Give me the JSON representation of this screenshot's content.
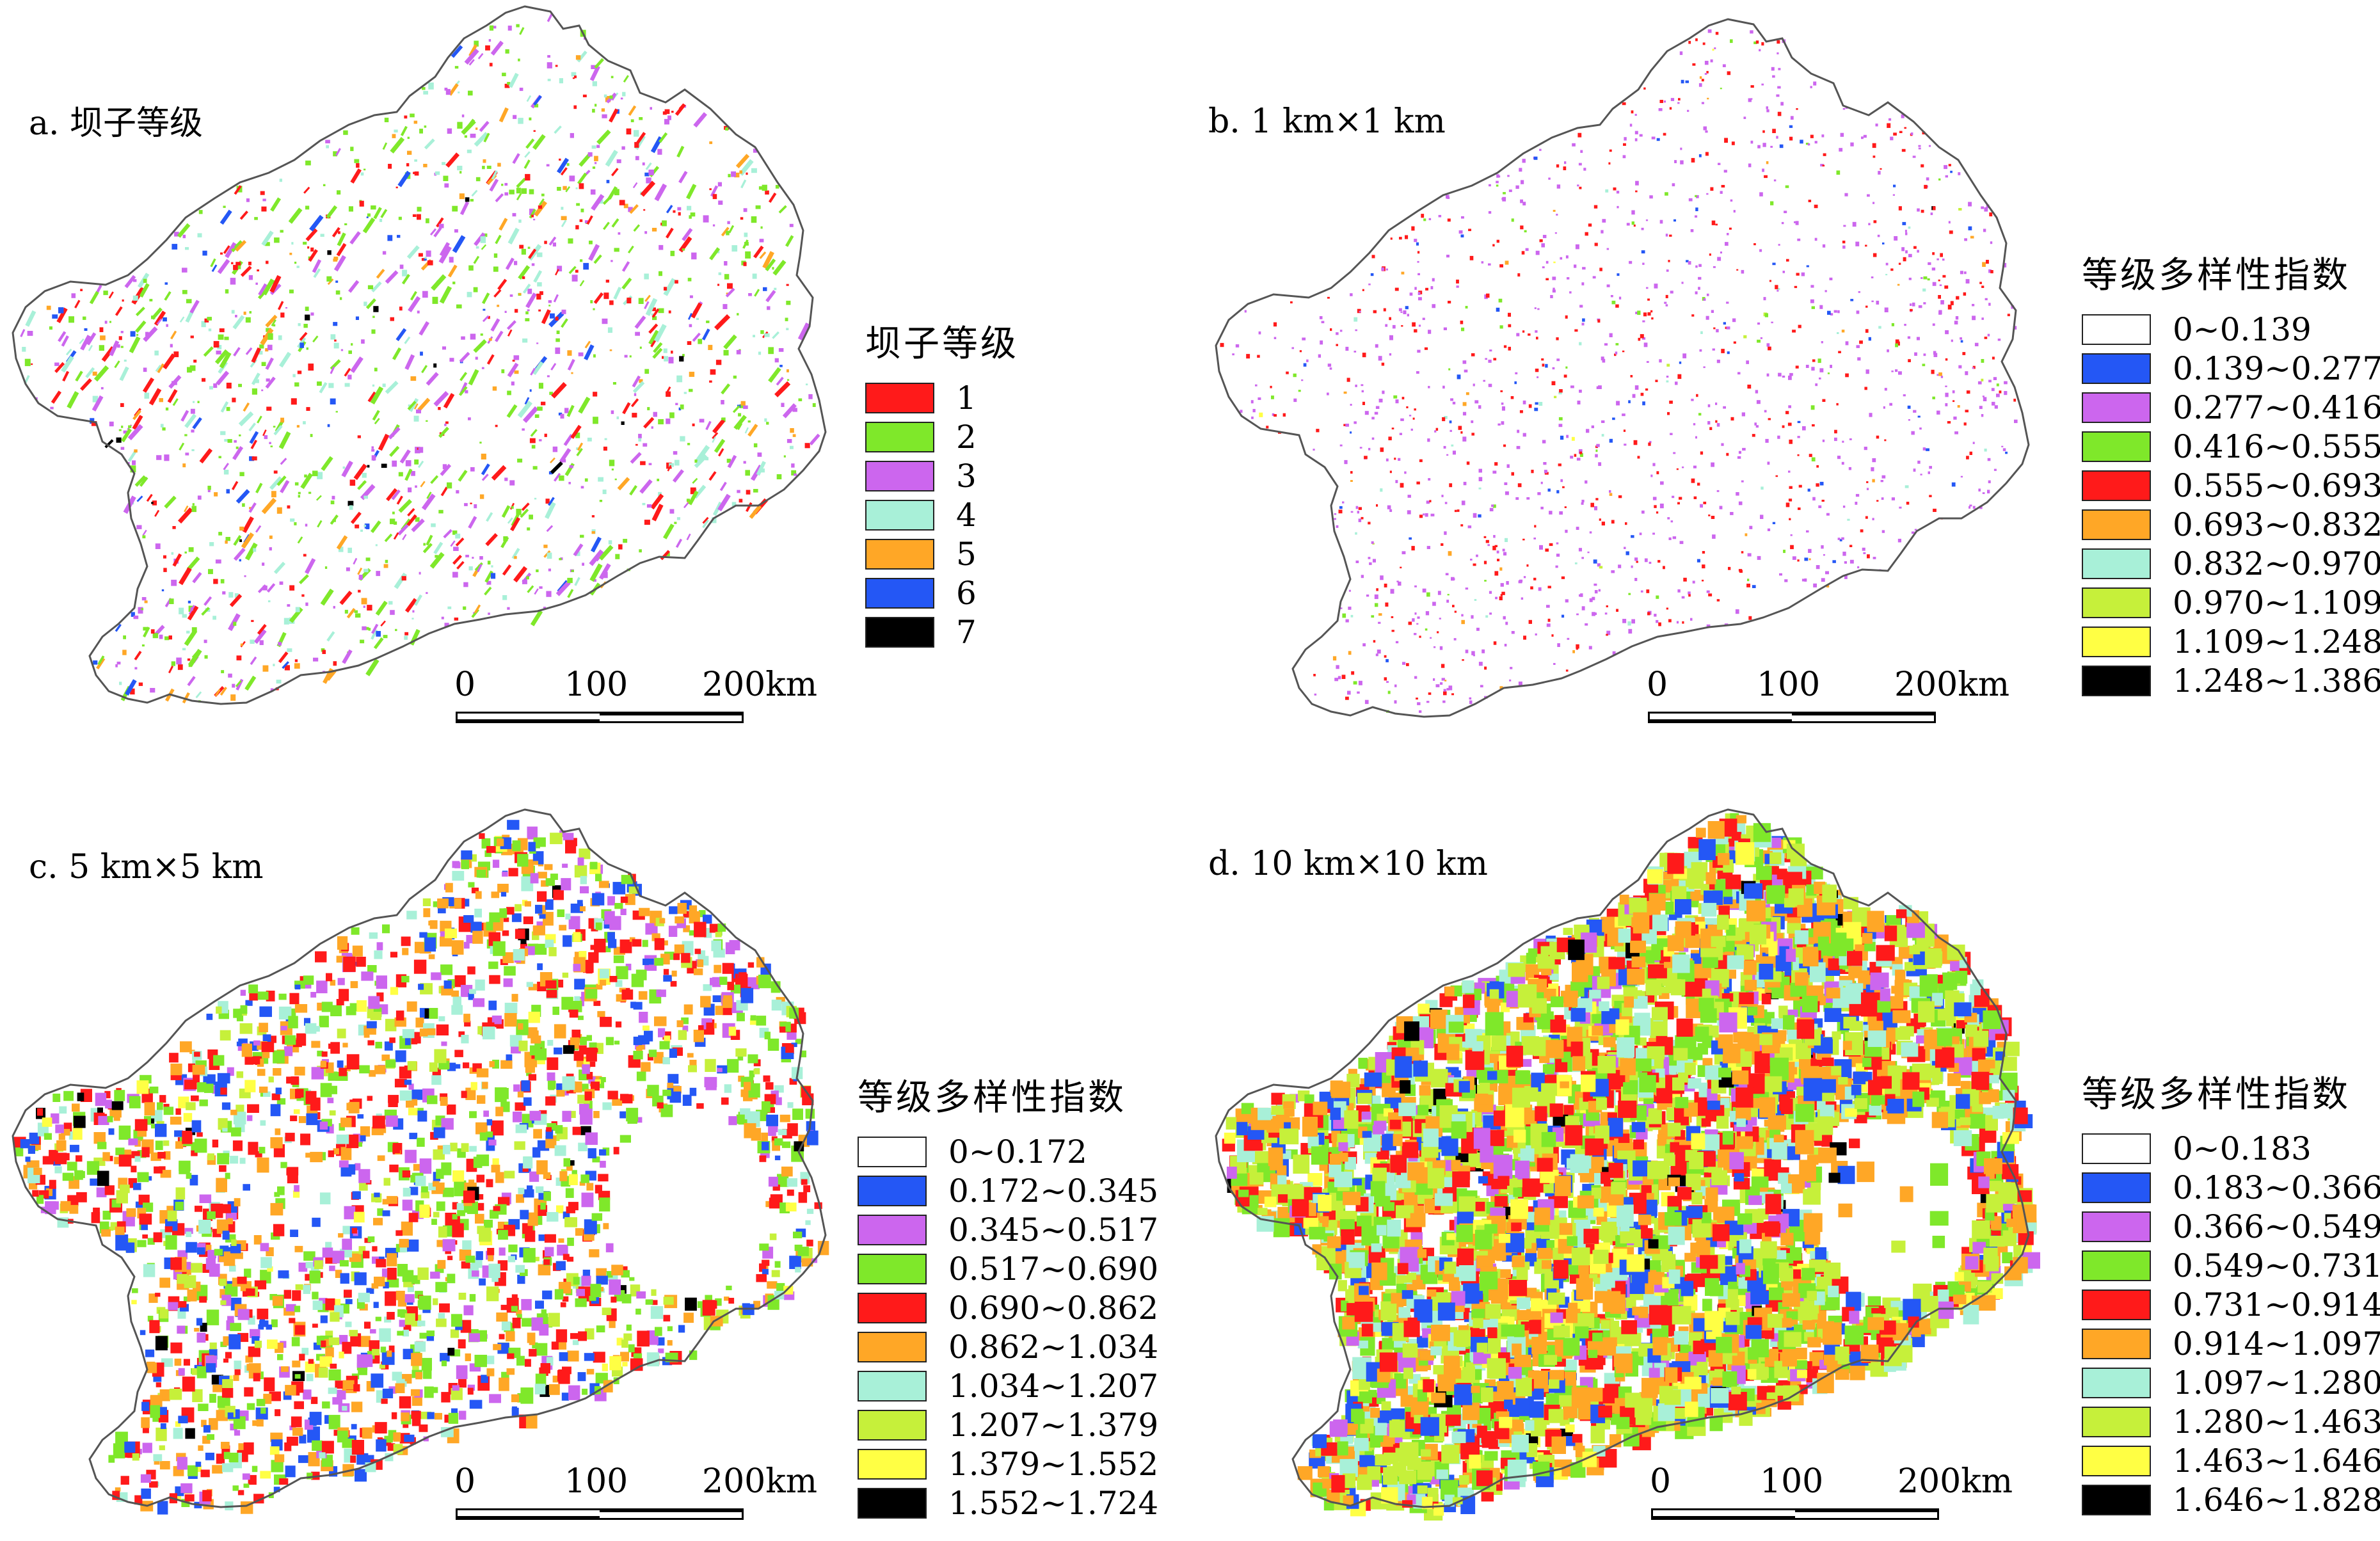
{
  "colors": {
    "outline": "#555555",
    "red": "#ff1a1a",
    "green": "#7fe82a",
    "violet": "#cc66ee",
    "aqua": "#a8f0d8",
    "orange": "#ffa726",
    "blue": "#2457f5",
    "black": "#000000",
    "white": "#ffffff",
    "limegreen": "#c6f03a",
    "yellow": "#ffff44"
  },
  "panels": [
    {
      "id": "a",
      "title": "a. 坝子等级",
      "legend_title": "坝子等级",
      "legend": [
        {
          "label": "1",
          "color": "#ff1a1a"
        },
        {
          "label": "2",
          "color": "#7fe82a"
        },
        {
          "label": "3",
          "color": "#cc66ee"
        },
        {
          "label": "4",
          "color": "#a8f0d8"
        },
        {
          "label": "5",
          "color": "#ffa726"
        },
        {
          "label": "6",
          "color": "#2457f5"
        },
        {
          "label": "7",
          "color": "#000000"
        }
      ],
      "scale_labels": [
        "0",
        "100",
        "200km"
      ]
    },
    {
      "id": "b",
      "title": "b. 1 km×1 km",
      "legend_title": "等级多样性指数",
      "legend": [
        {
          "label": "0~0.139",
          "color": "#ffffff"
        },
        {
          "label": "0.139~0.277",
          "color": "#2457f5"
        },
        {
          "label": "0.277~0.416",
          "color": "#cc66ee"
        },
        {
          "label": "0.416~0.555",
          "color": "#7fe82a"
        },
        {
          "label": "0.555~0.693",
          "color": "#ff1a1a"
        },
        {
          "label": "0.693~0.832",
          "color": "#ffa726"
        },
        {
          "label": "0.832~0.970",
          "color": "#a8f0d8"
        },
        {
          "label": "0.970~1.109",
          "color": "#c6f03a"
        },
        {
          "label": "1.109~1.248",
          "color": "#ffff44"
        },
        {
          "label": "1.248~1.386",
          "color": "#000000"
        }
      ],
      "scale_labels": [
        "0",
        "100",
        "200km"
      ]
    },
    {
      "id": "c",
      "title": "c. 5 km×5 km",
      "legend_title": "等级多样性指数",
      "legend": [
        {
          "label": "0~0.172",
          "color": "#ffffff"
        },
        {
          "label": "0.172~0.345",
          "color": "#2457f5"
        },
        {
          "label": "0.345~0.517",
          "color": "#cc66ee"
        },
        {
          "label": "0.517~0.690",
          "color": "#7fe82a"
        },
        {
          "label": "0.690~0.862",
          "color": "#ff1a1a"
        },
        {
          "label": "0.862~1.034",
          "color": "#ffa726"
        },
        {
          "label": "1.034~1.207",
          "color": "#a8f0d8"
        },
        {
          "label": "1.207~1.379",
          "color": "#c6f03a"
        },
        {
          "label": "1.379~1.552",
          "color": "#ffff44"
        },
        {
          "label": "1.552~1.724",
          "color": "#000000"
        }
      ],
      "scale_labels": [
        "0",
        "100",
        "200km"
      ]
    },
    {
      "id": "d",
      "title": "d. 10 km×10 km",
      "legend_title": "等级多样性指数",
      "legend": [
        {
          "label": "0~0.183",
          "color": "#ffffff"
        },
        {
          "label": "0.183~0.366",
          "color": "#2457f5"
        },
        {
          "label": "0.366~0.549",
          "color": "#cc66ee"
        },
        {
          "label": "0.549~0.731",
          "color": "#7fe82a"
        },
        {
          "label": "0.731~0.914",
          "color": "#ff1a1a"
        },
        {
          "label": "0.914~1.097",
          "color": "#ffa726"
        },
        {
          "label": "1.097~1.280",
          "color": "#a8f0d8"
        },
        {
          "label": "1.280~1.463",
          "color": "#c6f03a"
        },
        {
          "label": "1.463~1.646",
          "color": "#ffff44"
        },
        {
          "label": "1.646~1.828",
          "color": "#000000"
        }
      ],
      "scale_labels": [
        "0",
        "100",
        "200km"
      ]
    }
  ]
}
